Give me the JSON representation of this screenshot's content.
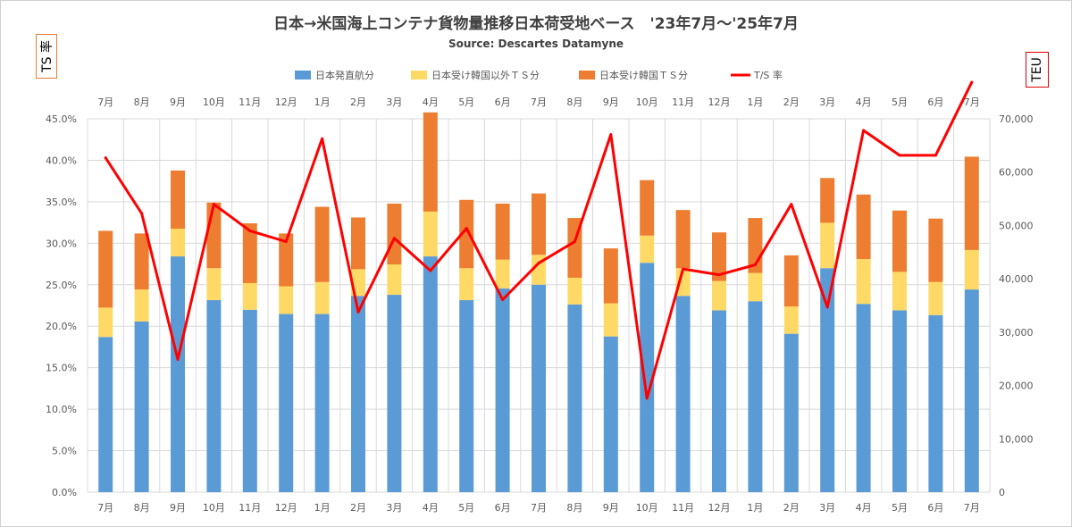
{
  "title": "日本→米国海上コンテナ貨物量推移日本荷受地ベース　'23年7月～'25年7月",
  "subtitle": "Source: Descartes Datamyne",
  "left_axis_label": "TS 率",
  "right_axis_label": "TEU",
  "colors": {
    "direct": "#5b9bd5",
    "ts_other": "#ffd966",
    "ts_korea": "#ed7d31",
    "ts_rate": "#ff0000",
    "grid": "#d9d9d9",
    "text": "#595959"
  },
  "chart_data": {
    "type": "bar",
    "stacked": true,
    "categories": [
      "7月",
      "8月",
      "9月",
      "10月",
      "11月",
      "12月",
      "1月",
      "2月",
      "3月",
      "4月",
      "5月",
      "6月",
      "7月",
      "8月",
      "9月",
      "10月",
      "11月",
      "12月",
      "1月",
      "2月",
      "3月",
      "4月",
      "5月",
      "6月",
      "7月"
    ],
    "series": [
      {
        "name": "日本発直航分",
        "axis": "right",
        "values": [
          29100,
          32000,
          44200,
          36000,
          34200,
          33400,
          33400,
          36800,
          37000,
          44200,
          36000,
          38200,
          38900,
          35200,
          29200,
          43000,
          36800,
          34100,
          35800,
          29700,
          42000,
          35300,
          34100,
          33200,
          38000
        ]
      },
      {
        "name": "日本受け韓国以外ＴＳ分",
        "axis": "right",
        "values": [
          5500,
          6000,
          5200,
          6000,
          5000,
          5200,
          6000,
          5000,
          5700,
          8400,
          6000,
          5400,
          5600,
          5000,
          6200,
          5100,
          5200,
          5500,
          5300,
          5100,
          8500,
          8400,
          7200,
          6200,
          7400
        ]
      },
      {
        "name": "日本受け韓国ＴＳ分",
        "axis": "right",
        "values": [
          14400,
          10500,
          10900,
          12300,
          11200,
          9900,
          14100,
          9700,
          11400,
          18600,
          12800,
          10500,
          11500,
          11200,
          10300,
          10400,
          10900,
          9100,
          10300,
          9600,
          8400,
          12100,
          11500,
          11900,
          17500
        ]
      },
      {
        "name": "T/S 率",
        "type": "line",
        "axis": "left",
        "values": [
          40.3,
          33.6,
          16.0,
          34.7,
          31.5,
          30.2,
          42.6,
          21.7,
          30.6,
          26.7,
          31.8,
          23.2,
          27.6,
          30.2,
          43.1,
          11.3,
          26.9,
          26.2,
          27.4,
          34.7,
          22.3,
          43.6,
          40.6,
          40.6,
          49.4
        ]
      }
    ],
    "y_left": {
      "min": 0,
      "max": 45,
      "step": 5,
      "ticks": [
        "0.0%",
        "5.0%",
        "10.0%",
        "15.0%",
        "20.0%",
        "25.0%",
        "30.0%",
        "35.0%",
        "40.0%",
        "45.0%"
      ]
    },
    "y_right": {
      "min": 0,
      "max": 70000,
      "step": 10000,
      "ticks": [
        "0",
        "10,000",
        "20,000",
        "30,000",
        "40,000",
        "50,000",
        "60,000",
        "70,000"
      ]
    },
    "legend_position": "top",
    "grid": true
  }
}
